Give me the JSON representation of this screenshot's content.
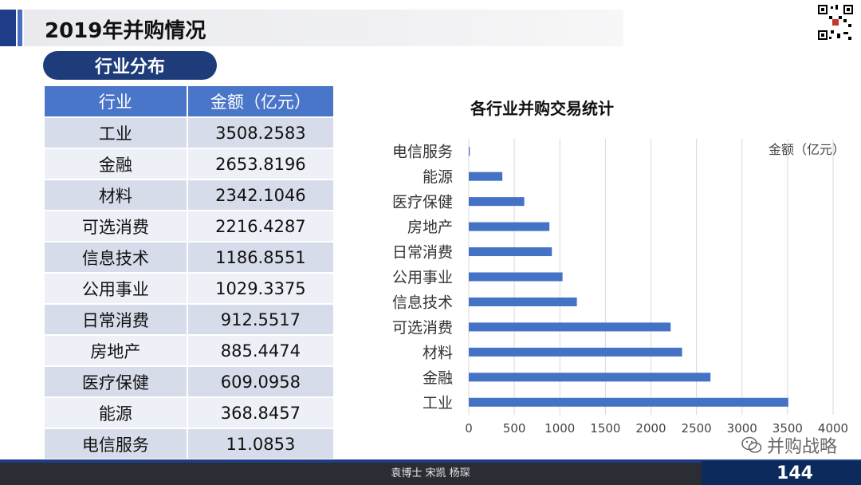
{
  "header": {
    "title": "2019年并购情况"
  },
  "section": {
    "pill_label": "行业分布"
  },
  "table": {
    "headers": [
      "行业",
      "金额（亿元）"
    ],
    "rows": [
      [
        "工业",
        "3508.2583"
      ],
      [
        "金融",
        "2653.8196"
      ],
      [
        "材料",
        "2342.1046"
      ],
      [
        "可选消费",
        "2216.4287"
      ],
      [
        "信息技术",
        "1186.8551"
      ],
      [
        "公用事业",
        "1029.3375"
      ],
      [
        "日常消费",
        "912.5517"
      ],
      [
        "房地产",
        "885.4474"
      ],
      [
        "医疗保健",
        "609.0958"
      ],
      [
        "能源",
        "368.8457"
      ],
      [
        "电信服务",
        "11.0853"
      ]
    ]
  },
  "chart_data": {
    "type": "bar",
    "title": "各行业并购交易统计",
    "unit_label": "金额（亿元）",
    "categories": [
      "工业",
      "金融",
      "材料",
      "可选消费",
      "信息技术",
      "公用事业",
      "日常消费",
      "房地产",
      "医疗保健",
      "能源",
      "电信服务"
    ],
    "values": [
      3508.2583,
      2653.8196,
      2342.1046,
      2216.4287,
      1186.8551,
      1029.3375,
      912.5517,
      885.4474,
      609.0958,
      368.8457,
      11.0853
    ],
    "xlim": [
      0,
      4000
    ],
    "xticks": [
      "0",
      "500",
      "1000",
      "1500",
      "2000",
      "2500",
      "3000",
      "3500",
      "4000"
    ],
    "orientation": "horizontal",
    "grid": true,
    "bar_color": "#4472c4"
  },
  "footer": {
    "authors": "袁博士 宋凯 杨琛",
    "page_number": "144",
    "watermark": "并购战略"
  }
}
